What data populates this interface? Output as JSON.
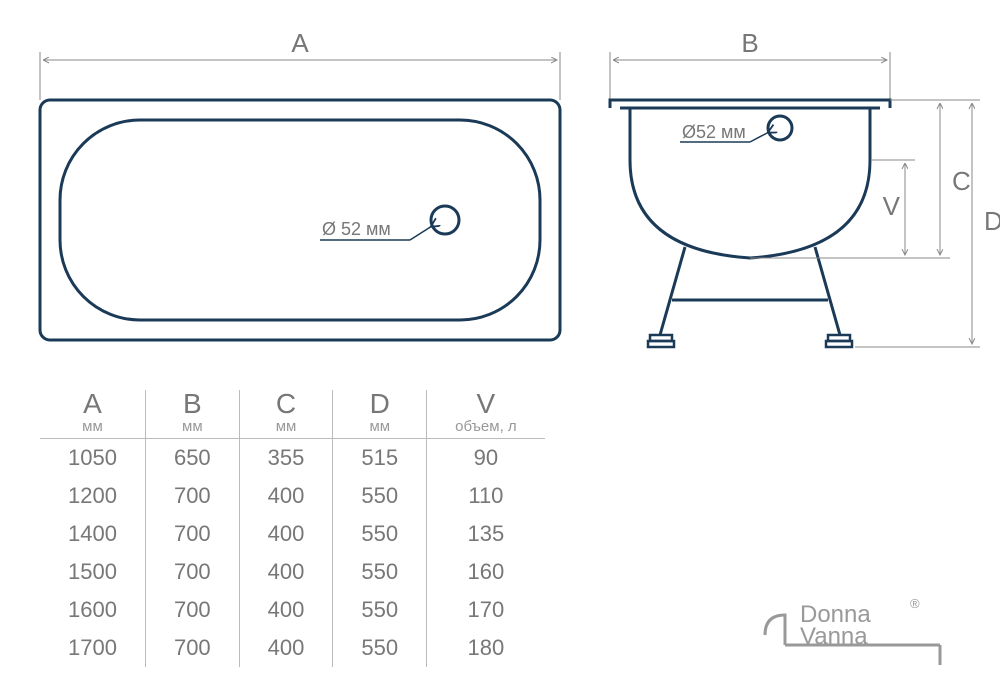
{
  "colors": {
    "stroke": "#1b3a57",
    "dim": "#888888",
    "text": "#777777",
    "light": "#bbbbbb",
    "background": "#ffffff"
  },
  "diagram": {
    "top_view": {
      "dim_label": "A",
      "drain_label": "Ø 52 мм",
      "stroke_width": 3
    },
    "end_view": {
      "dim_label_top": "B",
      "dim_label_V": "V",
      "dim_label_C": "C",
      "dim_label_D": "D",
      "drain_label": "Ø52 мм",
      "stroke_width": 3
    }
  },
  "table": {
    "columns": [
      {
        "letter": "A",
        "unit": "мм"
      },
      {
        "letter": "B",
        "unit": "мм"
      },
      {
        "letter": "C",
        "unit": "мм"
      },
      {
        "letter": "D",
        "unit": "мм"
      },
      {
        "letter": "V",
        "unit": "объем, л"
      }
    ],
    "rows": [
      [
        "1050",
        "650",
        "355",
        "515",
        "90"
      ],
      [
        "1200",
        "700",
        "400",
        "550",
        "110"
      ],
      [
        "1400",
        "700",
        "400",
        "550",
        "135"
      ],
      [
        "1500",
        "700",
        "400",
        "550",
        "160"
      ],
      [
        "1600",
        "700",
        "400",
        "550",
        "170"
      ],
      [
        "1700",
        "700",
        "400",
        "550",
        "180"
      ]
    ]
  },
  "brand": {
    "line1": "Donna",
    "line2": "Vanna",
    "registered": "®"
  }
}
